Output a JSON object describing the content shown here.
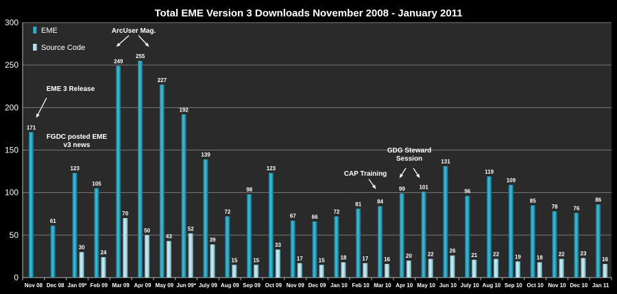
{
  "chart_data": {
    "type": "bar",
    "title": "Total EME Version 3 Downloads November 2008 - January 2011",
    "xlabel": "",
    "ylabel": "",
    "ylim": [
      0,
      300
    ],
    "yticks": [
      0,
      50,
      100,
      150,
      200,
      250,
      300
    ],
    "grid": true,
    "legend_position": "top-left",
    "categories": [
      "Nov 08",
      "Dec 08",
      "Jan 09*",
      "Feb 09",
      "Mar 09",
      "Apr 09",
      "May 09",
      "Jun 09*",
      "July 09",
      "Aug 09",
      "Sep 09",
      "Oct 09",
      "Nov 09",
      "Dec 09",
      "Jan 10",
      "Feb 10",
      "Mar 10",
      "Apr 10",
      "May 10",
      "Jun 10",
      "July 10",
      "Aug 10",
      "Sep 10",
      "Oct 10",
      "Nov 10",
      "Dec 10",
      "Jan 11"
    ],
    "series": [
      {
        "name": "EME",
        "color": "#2aa7c3",
        "values": [
          171,
          61,
          123,
          105,
          249,
          255,
          227,
          192,
          139,
          72,
          98,
          123,
          67,
          66,
          72,
          81,
          84,
          99,
          101,
          131,
          96,
          119,
          109,
          85,
          78,
          76,
          86
        ]
      },
      {
        "name": "Source Code",
        "color": "#a8dce8",
        "values": [
          null,
          null,
          30,
          24,
          70,
          50,
          43,
          52,
          39,
          15,
          15,
          33,
          17,
          15,
          18,
          17,
          16,
          20,
          22,
          26,
          21,
          22,
          19,
          18,
          22,
          23,
          16
        ]
      }
    ],
    "annotations": [
      {
        "lines": [
          "EME 3 Release"
        ],
        "category": "Nov 08"
      },
      {
        "lines": [
          "FGDC posted EME",
          "v3 news"
        ],
        "category": "Dec 08"
      },
      {
        "lines": [
          "ArcUser Mag."
        ],
        "category": "Mar 09"
      },
      {
        "lines": [
          "CAP Training"
        ],
        "category": "Mar 10"
      },
      {
        "lines": [
          "GDG Steward",
          "Session"
        ],
        "category": "Apr 10"
      }
    ]
  },
  "colors": {
    "background": "#000000",
    "plot_background": "#2a2a2a",
    "grid": "#7a7a7a",
    "text": "#ffffff"
  }
}
